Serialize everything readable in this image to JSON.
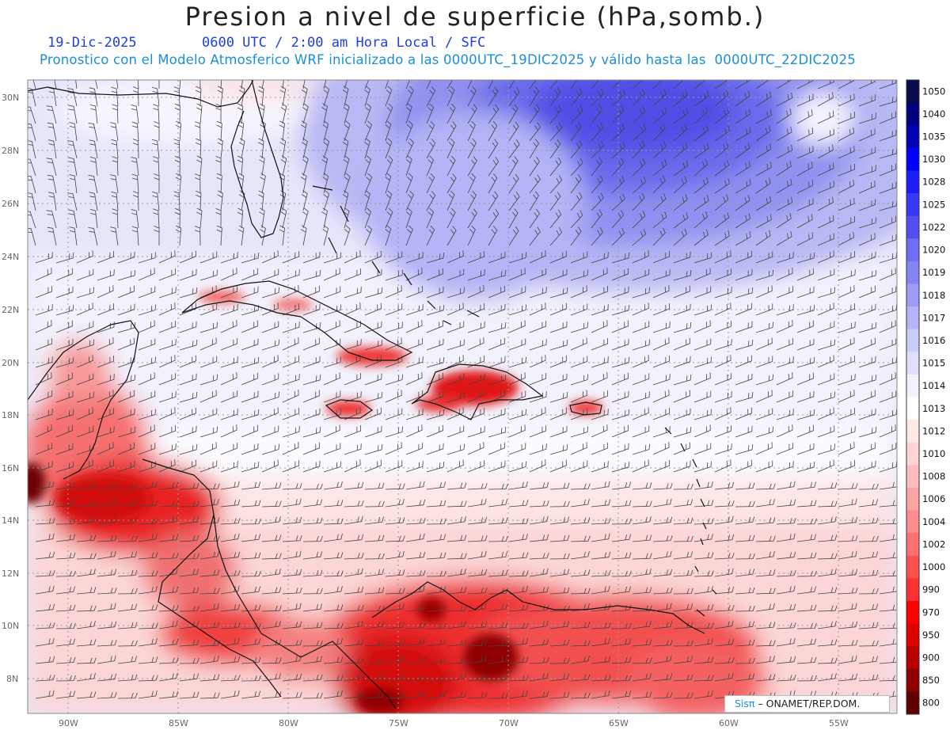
{
  "title": "Presion a nivel de superficie (hPa,somb.)",
  "date": "19-Dic-2025",
  "time_info": "0600 UTC / 2:00 am Hora Local / SFC",
  "model_info": "Pronostico con el Modelo Atmosferico WRF inicializado a las 0000UTC_19DIC2025 y válido hasta las  0000UTC_22DIC2025",
  "lat_labels": [
    "30N",
    "28N",
    "26N",
    "24N",
    "22N",
    "20N",
    "18N",
    "16N",
    "14N",
    "12N",
    "10N",
    "8N"
  ],
  "lon_labels": [
    "90W",
    "85W",
    "80W",
    "75W",
    "70W",
    "65W",
    "60W",
    "55W"
  ],
  "colorbar": {
    "levels": [
      "1050",
      "1040",
      "1035",
      "1030",
      "1028",
      "1025",
      "1022",
      "1020",
      "1019",
      "1018",
      "1017",
      "1016",
      "1015",
      "1014",
      "1013",
      "1012",
      "1010",
      "1008",
      "1006",
      "1004",
      "1002",
      "1000",
      "990",
      "970",
      "950",
      "900",
      "850",
      "800"
    ],
    "colors": [
      "#0a0a4a",
      "#000080",
      "#0000b4",
      "#0000ff",
      "#1c1cf5",
      "#3838f5",
      "#5050f0",
      "#6e6ef2",
      "#8484f4",
      "#9c9cf6",
      "#b4b4f8",
      "#ccccfa",
      "#e0e0fc",
      "#f2f2fe",
      "#ffffff",
      "#ffe8e8",
      "#ffd4d4",
      "#ffbcbc",
      "#ffa4a4",
      "#ff8c8c",
      "#ff7070",
      "#ff5050",
      "#ff3030",
      "#ff0000",
      "#e00000",
      "#b80000",
      "#900000",
      "#600000"
    ]
  },
  "credit": {
    "sis": "Sisπ",
    "org": "– ONAMET/REP.DOM."
  }
}
